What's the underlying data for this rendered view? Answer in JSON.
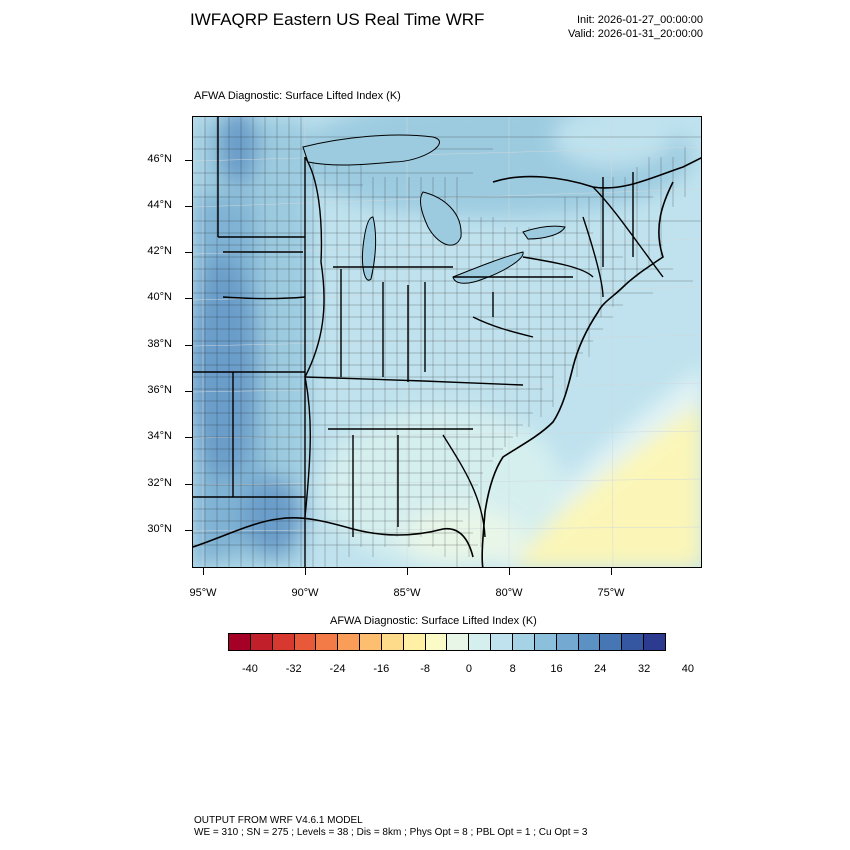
{
  "header": {
    "title": "IWFAQRP Eastern US Real Time WRF",
    "init": "Init: 2026-01-27_00:00:00",
    "valid": "Valid: 2026-01-31_20:00:00"
  },
  "map": {
    "title": "AFWA Diagnostic: Surface Lifted Index   (K)",
    "field": "Surface Lifted Index",
    "units": "K",
    "lat_labels": [
      "46°N",
      "44°N",
      "42°N",
      "40°N",
      "38°N",
      "36°N",
      "34°N",
      "32°N",
      "30°N"
    ],
    "lon_labels": [
      "95°W",
      "90°W",
      "85°W",
      "80°W",
      "75°W"
    ],
    "colors": {
      "ocean_warm": "#fbf6b8",
      "light_cyan": "#e1f3f5",
      "light_blue": "#bfe2ee",
      "mid_blue": "#9ccbe0",
      "deep_blue": "#7fb2d4",
      "deepest_blue": "#6a9dc9"
    }
  },
  "colorbar": {
    "title": "AFWA Diagnostic: Surface Lifted Index  (K)",
    "labels": [
      "-40",
      "-32",
      "-24",
      "-16",
      "-8",
      "0",
      "8",
      "16",
      "24",
      "32",
      "40"
    ],
    "colors": [
      "#a50026",
      "#c1202a",
      "#d7382f",
      "#e8593a",
      "#f37b48",
      "#f99d59",
      "#fdbf6f",
      "#fedb8b",
      "#fff0a6",
      "#fbfbc8",
      "#e8f6e8",
      "#d5efef",
      "#bfe2ee",
      "#a6d2e5",
      "#8bbfdb",
      "#74aad1",
      "#5b91c3",
      "#4676b3",
      "#3557a1",
      "#2c3a8f"
    ]
  },
  "footer": {
    "line1": "OUTPUT FROM WRF V4.6.1 MODEL",
    "line2": "WE = 310 ; SN = 275 ; Levels = 38 ; Dis = 8km ; Phys Opt = 8 ; PBL Opt = 1 ; Cu Opt = 3"
  }
}
